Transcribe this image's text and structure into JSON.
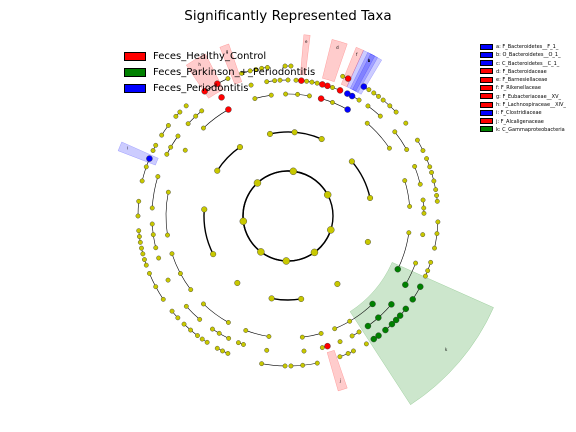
{
  "chart_data": {
    "type": "cladogram",
    "title": "Significantly Represented Taxa",
    "groups": [
      {
        "name": "Feces_Healthy_Control",
        "color": "#ff0000"
      },
      {
        "name": "Feces_Parkinson_+_Periodontitis",
        "color": "#008000"
      },
      {
        "name": "Feces_Periodontitis",
        "color": "#0000ff"
      }
    ],
    "default_node_color": "#c8c800",
    "levels": 6,
    "leaf_count": 160,
    "clades": [
      {
        "key": "a",
        "label": "a: F_Bacteroidetes__F_1_",
        "group": "Feces_Periodontitis",
        "color": "#0000ff"
      },
      {
        "key": "b",
        "label": "b: O_Bacteroidetes__O_1_",
        "group": "Feces_Periodontitis",
        "color": "#0000ff"
      },
      {
        "key": "c",
        "label": "c: C_Bacteroidetes__C_1_",
        "group": "Feces_Periodontitis",
        "color": "#0000ff"
      },
      {
        "key": "d",
        "label": "d: F_Bacteroidaceae",
        "group": "Feces_Healthy_Control",
        "color": "#ff0000"
      },
      {
        "key": "e",
        "label": "e: F_Barnesiellaceae",
        "group": "Feces_Healthy_Control",
        "color": "#ff0000"
      },
      {
        "key": "f",
        "label": "f: F_Rikenellaceae",
        "group": "Feces_Healthy_Control",
        "color": "#ff0000"
      },
      {
        "key": "g",
        "label": "g: F_Eubacteriaceae__XV_",
        "group": "Feces_Healthy_Control",
        "color": "#ff0000"
      },
      {
        "key": "h",
        "label": "h: F_Lachnospiraceae__XIV_",
        "group": "Feces_Healthy_Control",
        "color": "#ff0000"
      },
      {
        "key": "i",
        "label": "i: F_Clostridiaceae",
        "group": "Feces_Periodontitis",
        "color": "#0000ff"
      },
      {
        "key": "j",
        "label": "j: F_Alcaligenaceae",
        "group": "Feces_Healthy_Control",
        "color": "#ff0000"
      },
      {
        "key": "k",
        "label": "k: C_Gammaproteobacteria",
        "group": "Feces_Parkinson_+_Periodontitis",
        "color": "#008000"
      }
    ],
    "sectors": [
      {
        "key": "a",
        "color": "#0000ff",
        "angle_start": 61.5,
        "angle_end": 63
      },
      {
        "key": "b",
        "color": "#0000ff",
        "angle_start": 60.5,
        "angle_end": 64
      },
      {
        "key": "c",
        "color": "#0000ff",
        "angle_start": 59,
        "angle_end": 65.5
      },
      {
        "key": "d",
        "color": "#ff0000",
        "angle_start": 71,
        "angle_end": 76
      },
      {
        "key": "e",
        "color": "#ff0000",
        "angle_start": 83,
        "angle_end": 85
      },
      {
        "key": "f",
        "color": "#ff0000",
        "angle_start": 65.5,
        "angle_end": 68
      },
      {
        "key": "g",
        "color": "#ff0000",
        "angle_start": 109,
        "angle_end": 112
      },
      {
        "key": "h",
        "color": "#ff0000",
        "angle_start": 117,
        "angle_end": 124
      },
      {
        "key": "i",
        "color": "#0000ff",
        "angle_start": 156,
        "angle_end": 159
      },
      {
        "key": "j",
        "color": "#ff0000",
        "angle_start": 286,
        "angle_end": 289
      },
      {
        "key": "k",
        "color": "#008000",
        "angle_start": 303,
        "angle_end": 336
      }
    ]
  }
}
